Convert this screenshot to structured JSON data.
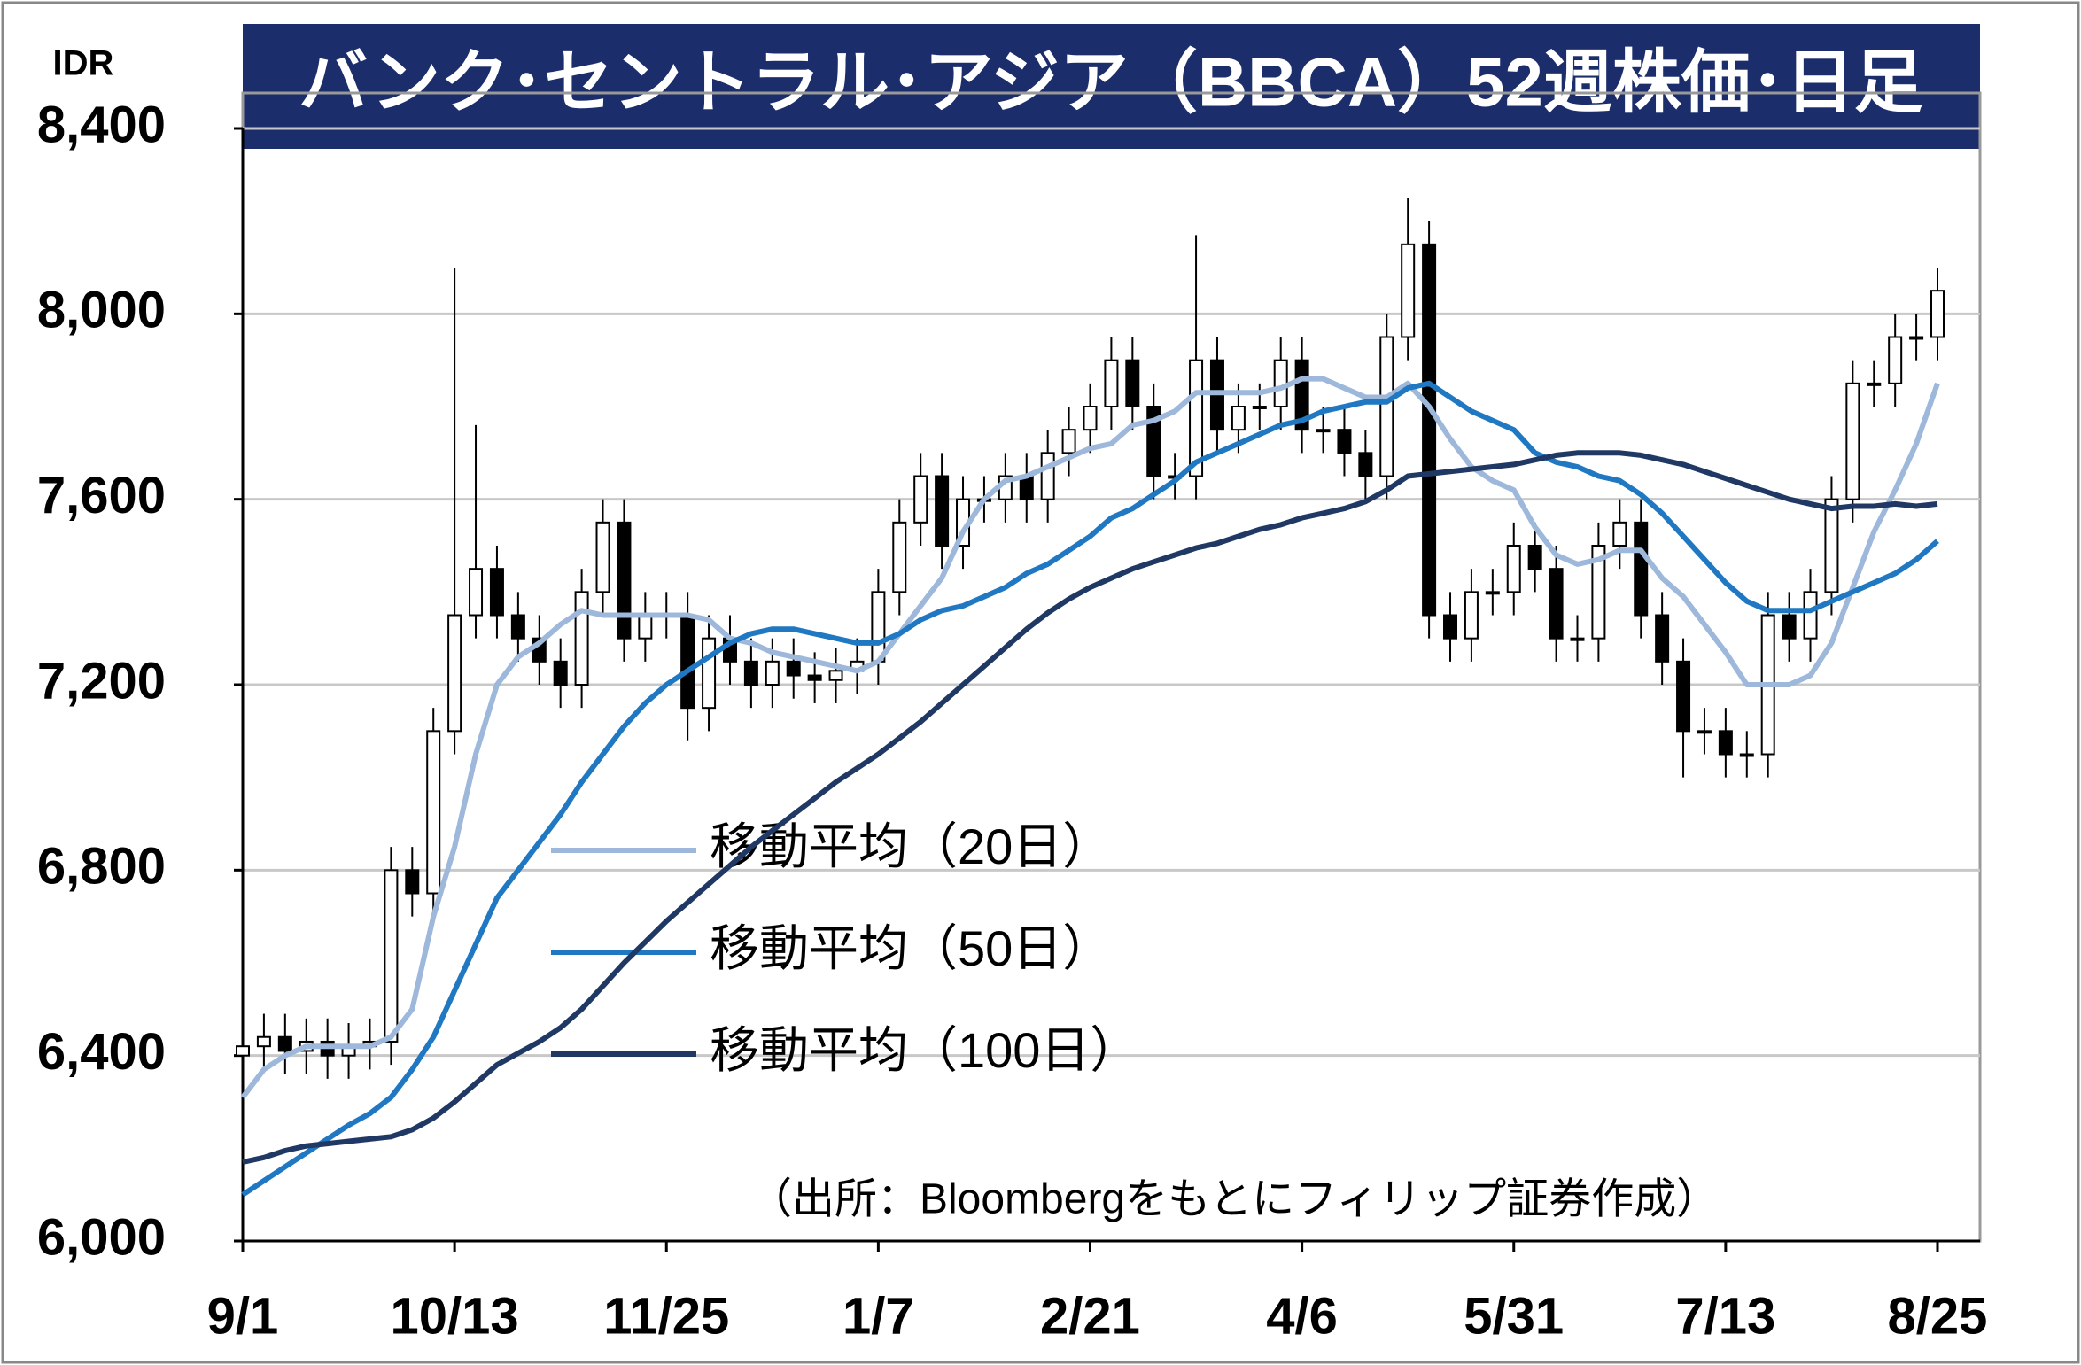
{
  "chart_data": {
    "type": "candlestick",
    "title": "バンク･セントラル･アジア（BBCA）52週株価･日足",
    "y_label": "IDR",
    "note": "（出所：Bloombergをもとにフィリップ証券作成）",
    "categories": [
      "9/1",
      null,
      null,
      null,
      null,
      null,
      null,
      null,
      null,
      null,
      "10/13",
      null,
      null,
      null,
      null,
      null,
      null,
      null,
      null,
      null,
      "11/25",
      null,
      null,
      null,
      null,
      null,
      null,
      null,
      null,
      null,
      "1/7",
      null,
      null,
      null,
      null,
      null,
      null,
      null,
      null,
      null,
      "2/21",
      null,
      null,
      null,
      null,
      null,
      null,
      null,
      null,
      null,
      "4/6",
      null,
      null,
      null,
      null,
      null,
      null,
      null,
      null,
      null,
      "5/31",
      null,
      null,
      null,
      null,
      null,
      null,
      null,
      null,
      null,
      "7/13",
      null,
      null,
      null,
      null,
      null,
      null,
      null,
      null,
      null,
      "8/25"
    ],
    "open": [
      6400,
      6420,
      6440,
      6410,
      6430,
      6400,
      6420,
      6430,
      6800,
      6750,
      7100,
      7350,
      7450,
      7350,
      7300,
      7250,
      7200,
      7400,
      7550,
      7300,
      7350,
      7350,
      7150,
      7300,
      7250,
      7200,
      7250,
      7220,
      7210,
      7230,
      7250,
      7400,
      7550,
      7650,
      7500,
      7600,
      7600,
      7650,
      7600,
      7700,
      7750,
      7800,
      7900,
      7800,
      7650,
      7650,
      7900,
      7750,
      7800,
      7800,
      7900,
      7750,
      7750,
      7700,
      7650,
      7950,
      8150,
      7350,
      7300,
      7400,
      7400,
      7500,
      7450,
      7300,
      7300,
      7500,
      7550,
      7350,
      7250,
      7100,
      7100,
      7050,
      7050,
      7350,
      7300,
      7400,
      7600,
      7850,
      7850,
      7950,
      7950
    ],
    "high": [
      6470,
      6490,
      6490,
      6480,
      6480,
      6470,
      6480,
      6850,
      6850,
      7150,
      8100,
      7760,
      7500,
      7400,
      7350,
      7300,
      7450,
      7600,
      7600,
      7400,
      7400,
      7400,
      7350,
      7350,
      7300,
      7300,
      7300,
      7270,
      7280,
      7300,
      7450,
      7600,
      7700,
      7700,
      7650,
      7650,
      7700,
      7700,
      7750,
      7800,
      7850,
      7950,
      7950,
      7850,
      7700,
      8170,
      7950,
      7850,
      7850,
      7950,
      7950,
      7800,
      7800,
      7750,
      8000,
      8250,
      8200,
      7400,
      7450,
      7450,
      7550,
      7550,
      7500,
      7350,
      7550,
      7600,
      7600,
      7400,
      7300,
      7150,
      7150,
      7100,
      7400,
      7400,
      7450,
      7650,
      7900,
      7900,
      8000,
      8000,
      8100
    ],
    "low": [
      6350,
      6370,
      6360,
      6360,
      6350,
      6350,
      6370,
      6380,
      6700,
      6700,
      7050,
      7300,
      7300,
      7250,
      7200,
      7150,
      7150,
      7350,
      7250,
      7250,
      7300,
      7080,
      7100,
      7200,
      7150,
      7150,
      7170,
      7160,
      7160,
      7180,
      7200,
      7350,
      7500,
      7450,
      7450,
      7550,
      7550,
      7550,
      7550,
      7650,
      7700,
      7750,
      7750,
      7600,
      7600,
      7600,
      7700,
      7700,
      7750,
      7750,
      7700,
      7700,
      7650,
      7600,
      7600,
      7900,
      7300,
      7250,
      7250,
      7350,
      7350,
      7400,
      7250,
      7250,
      7250,
      7450,
      7300,
      7200,
      7000,
      7050,
      7000,
      7000,
      7000,
      7250,
      7250,
      7350,
      7550,
      7800,
      7800,
      7900,
      7900
    ],
    "close": [
      6420,
      6440,
      6410,
      6430,
      6400,
      6420,
      6430,
      6800,
      6750,
      7100,
      7350,
      7450,
      7350,
      7300,
      7250,
      7200,
      7400,
      7550,
      7300,
      7350,
      7350,
      7150,
      7300,
      7250,
      7200,
      7250,
      7220,
      7210,
      7230,
      7250,
      7400,
      7550,
      7650,
      7500,
      7600,
      7600,
      7650,
      7600,
      7700,
      7750,
      7800,
      7900,
      7800,
      7650,
      7650,
      7900,
      7750,
      7800,
      7800,
      7900,
      7750,
      7750,
      7700,
      7650,
      7950,
      8150,
      7350,
      7300,
      7400,
      7400,
      7500,
      7450,
      7300,
      7300,
      7500,
      7550,
      7350,
      7250,
      7100,
      7100,
      7050,
      7050,
      7350,
      7300,
      7400,
      7600,
      7850,
      7850,
      7950,
      7950,
      8050
    ],
    "series": [
      {
        "name": "移動平均（20日）",
        "color": "#9db8da",
        "values": [
          6310,
          6370,
          6400,
          6420,
          6420,
          6420,
          6420,
          6440,
          6500,
          6700,
          6850,
          7050,
          7200,
          7260,
          7290,
          7330,
          7360,
          7350,
          7350,
          7350,
          7350,
          7350,
          7340,
          7300,
          7290,
          7270,
          7260,
          7250,
          7240,
          7230,
          7250,
          7310,
          7370,
          7430,
          7530,
          7600,
          7640,
          7650,
          7670,
          7690,
          7710,
          7720,
          7760,
          7770,
          7790,
          7830,
          7830,
          7830,
          7830,
          7840,
          7860,
          7860,
          7840,
          7820,
          7820,
          7850,
          7800,
          7730,
          7670,
          7640,
          7620,
          7540,
          7480,
          7460,
          7470,
          7490,
          7490,
          7430,
          7390,
          7330,
          7270,
          7200,
          7200,
          7200,
          7220,
          7290,
          7410,
          7530,
          7620,
          7720,
          7850
        ]
      },
      {
        "name": "移動平均（50日）",
        "color": "#1f78c1",
        "values": [
          6100,
          6130,
          6160,
          6190,
          6220,
          6250,
          6275,
          6310,
          6370,
          6440,
          6540,
          6640,
          6740,
          6800,
          6860,
          6920,
          6990,
          7050,
          7110,
          7160,
          7200,
          7230,
          7260,
          7290,
          7310,
          7320,
          7320,
          7310,
          7300,
          7290,
          7290,
          7310,
          7340,
          7360,
          7370,
          7390,
          7410,
          7440,
          7460,
          7490,
          7520,
          7560,
          7580,
          7610,
          7640,
          7680,
          7700,
          7720,
          7740,
          7760,
          7770,
          7790,
          7800,
          7810,
          7810,
          7840,
          7850,
          7820,
          7790,
          7770,
          7750,
          7700,
          7680,
          7670,
          7650,
          7640,
          7610,
          7570,
          7520,
          7470,
          7420,
          7380,
          7360,
          7360,
          7360,
          7380,
          7400,
          7420,
          7440,
          7470,
          7510
        ]
      },
      {
        "name": "移動平均（100日）",
        "color": "#1f3864",
        "values": [
          6170,
          6180,
          6195,
          6205,
          6210,
          6215,
          6220,
          6225,
          6240,
          6265,
          6300,
          6340,
          6380,
          6405,
          6430,
          6460,
          6500,
          6550,
          6600,
          6645,
          6690,
          6730,
          6770,
          6810,
          6850,
          6885,
          6920,
          6955,
          6990,
          7020,
          7050,
          7085,
          7120,
          7160,
          7200,
          7240,
          7280,
          7320,
          7355,
          7385,
          7410,
          7430,
          7450,
          7465,
          7480,
          7495,
          7505,
          7520,
          7535,
          7545,
          7560,
          7570,
          7580,
          7595,
          7620,
          7650,
          7655,
          7660,
          7665,
          7670,
          7675,
          7685,
          7695,
          7700,
          7700,
          7700,
          7695,
          7685,
          7675,
          7660,
          7645,
          7630,
          7615,
          7600,
          7590,
          7580,
          7585,
          7585,
          7590,
          7585,
          7590
        ]
      }
    ],
    "ylim": [
      6000,
      8400
    ],
    "yticks": [
      {
        "value": 6000,
        "label": "6,000"
      },
      {
        "value": 6400,
        "label": "6,400"
      },
      {
        "value": 6800,
        "label": "6,800"
      },
      {
        "value": 7200,
        "label": "7,200"
      },
      {
        "value": 7600,
        "label": "7,600"
      },
      {
        "value": 8000,
        "label": "8,000"
      },
      {
        "value": 8400,
        "label": "8,400"
      }
    ],
    "grid": true
  }
}
